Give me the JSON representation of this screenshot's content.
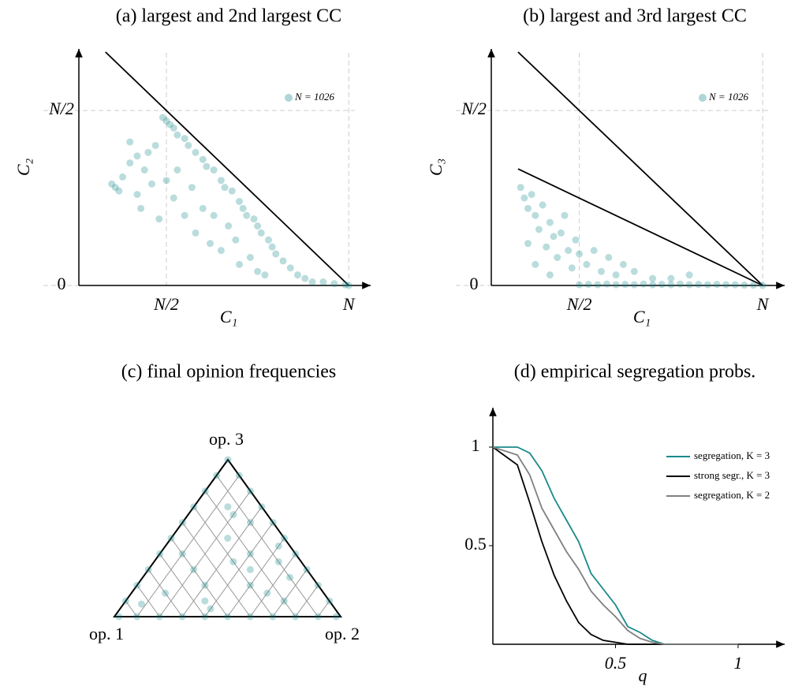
{
  "chart_data": [
    {
      "type": "scatter",
      "title": "(a) largest and 2nd largest CC",
      "x_label": "C₁",
      "y_label": "C₂",
      "xlim": [
        0.26,
        1.06
      ],
      "ylim": [
        0,
        0.676
      ],
      "xticks": [
        {
          "value": 0.5,
          "label": "N/2"
        },
        {
          "value": 1,
          "label": "N"
        }
      ],
      "yticks": [
        0,
        {
          "value": 0.5,
          "label": "N/2"
        }
      ],
      "grid": true,
      "legend": "upper right",
      "lines": [
        {
          "color": "#000000",
          "x": [
            0.333,
            1
          ],
          "y": [
            0.667,
            0
          ]
        }
      ],
      "series": [
        {
          "name": "N = 1026",
          "color": "#1a8a8a",
          "x": [
            0.49,
            0.5,
            0.51,
            0.52,
            0.53,
            0.55,
            0.56,
            0.58,
            0.6,
            0.61,
            0.63,
            0.65,
            0.66,
            0.68,
            0.7,
            0.71,
            0.72,
            0.74,
            0.75,
            0.76,
            0.78,
            0.79,
            0.8,
            0.82,
            0.84,
            0.86,
            0.88,
            0.9,
            0.93,
            0.96,
            0.99,
            1.0,
            0.35,
            0.36,
            0.38,
            0.4,
            0.37,
            0.42,
            0.44,
            0.45,
            0.47,
            0.43,
            0.5,
            0.52,
            0.55,
            0.58,
            0.6,
            0.62,
            0.65,
            0.67,
            0.7,
            0.73,
            0.75,
            0.48,
            0.53,
            0.57,
            0.46,
            0.63,
            0.69,
            0.77,
            0.4,
            0.42
          ],
          "y": [
            0.48,
            0.47,
            0.46,
            0.45,
            0.43,
            0.42,
            0.4,
            0.38,
            0.36,
            0.34,
            0.33,
            0.3,
            0.28,
            0.27,
            0.24,
            0.22,
            0.2,
            0.19,
            0.17,
            0.15,
            0.13,
            0.11,
            0.09,
            0.07,
            0.05,
            0.03,
            0.02,
            0.01,
            0.01,
            0.005,
            0.002,
            0,
            0.29,
            0.28,
            0.31,
            0.35,
            0.27,
            0.26,
            0.33,
            0.38,
            0.4,
            0.22,
            0.3,
            0.25,
            0.2,
            0.15,
            0.22,
            0.12,
            0.1,
            0.17,
            0.06,
            0.08,
            0.04,
            0.19,
            0.33,
            0.28,
            0.29,
            0.2,
            0.13,
            0.03,
            0.41,
            0.37
          ]
        }
      ]
    },
    {
      "type": "scatter",
      "title": "(b) largest and 3rd largest CC",
      "x_label": "C₁",
      "y_label": "C₃",
      "xlim": [
        0.26,
        1.06
      ],
      "ylim": [
        0,
        0.676
      ],
      "xticks": [
        {
          "value": 0.5,
          "label": "N/2"
        },
        {
          "value": 1,
          "label": "N"
        }
      ],
      "yticks": [
        0,
        {
          "value": 0.5,
          "label": "N/2"
        }
      ],
      "grid": true,
      "legend": "upper right",
      "lines": [
        {
          "color": "#000000",
          "x": [
            0.333,
            1
          ],
          "y": [
            0.667,
            0
          ]
        },
        {
          "color": "#000000",
          "x": [
            0.333,
            1
          ],
          "y": [
            0.333,
            0
          ]
        }
      ],
      "series": [
        {
          "name": "N = 1026",
          "color": "#1a8a8a",
          "x": [
            0.34,
            0.35,
            0.36,
            0.37,
            0.38,
            0.39,
            0.4,
            0.41,
            0.42,
            0.43,
            0.44,
            0.45,
            0.46,
            0.47,
            0.48,
            0.49,
            0.5,
            0.52,
            0.54,
            0.56,
            0.58,
            0.6,
            0.62,
            0.65,
            0.7,
            0.75,
            0.8,
            0.36,
            0.38,
            0.42,
            0.5,
            0.525,
            0.55,
            0.575,
            0.6,
            0.625,
            0.65,
            0.675,
            0.7,
            0.725,
            0.75,
            0.775,
            0.8,
            0.825,
            0.85,
            0.875,
            0.9,
            0.925,
            0.95,
            0.975,
            1.0
          ],
          "y": [
            0.28,
            0.25,
            0.22,
            0.26,
            0.2,
            0.16,
            0.23,
            0.11,
            0.18,
            0.14,
            0.08,
            0.15,
            0.2,
            0.1,
            0.05,
            0.13,
            0.09,
            0.06,
            0.1,
            0.04,
            0.08,
            0.03,
            0.06,
            0.04,
            0.02,
            0.02,
            0.03,
            0.12,
            0.06,
            0.03,
            0.002,
            0.003,
            0.002,
            0.004,
            0.002,
            0.003,
            0.002,
            0.004,
            0.002,
            0.003,
            0.002,
            0.004,
            0.002,
            0.003,
            0.002,
            0.003,
            0.002,
            0.002,
            0.001,
            0.001,
            0
          ]
        }
      ]
    },
    {
      "type": "ternary",
      "title": "(c) final opinion frequencies",
      "corners": [
        "op. 1",
        "op. 2",
        "op. 3"
      ],
      "ticks": [
        0.1,
        0.2,
        0.3,
        0.4,
        0.5,
        0.6,
        0.7,
        0.8,
        0.9
      ],
      "series": [
        {
          "color": "#1a8a8a",
          "x": [
            0.02,
            0.1,
            0.2,
            0.3,
            0.4,
            0.5,
            0.6,
            0.7,
            0.8,
            0.9,
            0.98,
            0,
            0,
            0,
            0,
            0,
            0,
            0,
            0,
            0,
            0,
            0.9,
            0.8,
            0.7,
            0.6,
            0.5,
            0.4,
            0.3,
            0.2,
            0.1,
            0.2,
            0.3,
            0.4,
            0.25,
            0.5,
            0.6,
            0.15,
            0.35,
            0.45,
            0.3,
            0.2,
            0.55,
            0.7,
            0.1,
            0.4,
            0.65,
            0.15,
            0.35,
            0.5,
            0.08
          ],
          "y": [
            0,
            0,
            0,
            0,
            0,
            0,
            0,
            0,
            0,
            0,
            0,
            0.1,
            0.2,
            0.3,
            0.4,
            0.5,
            0.6,
            0.7,
            0.8,
            0.9,
            1.0,
            0.1,
            0.2,
            0.3,
            0.4,
            0.5,
            0.6,
            0.7,
            0.8,
            0.9,
            0.3,
            0.2,
            0.4,
            0.5,
            0.2,
            0.15,
            0.15,
            0.1,
            0.3,
            0.6,
            0.65,
            0.35,
            0.1,
            0.4,
            0.05,
            0.25,
            0.7,
            0.35,
            0.45,
            0.08
          ]
        }
      ]
    },
    {
      "type": "line",
      "title": "(d) empirical segregation probs.",
      "x_label": "q",
      "xlim": [
        0,
        1.19
      ],
      "ylim": [
        0,
        1.2
      ],
      "xticks": [
        0.5,
        1
      ],
      "yticks": [
        0.5,
        1
      ],
      "legend": "upper right",
      "x": [
        0,
        0.1,
        0.15,
        0.2,
        0.25,
        0.3,
        0.35,
        0.4,
        0.45,
        0.5,
        0.55,
        0.6,
        0.65,
        0.7,
        0.8,
        0.9,
        1.0
      ],
      "series": [
        {
          "name": "segregation, K = 3",
          "color": "#1a8a8a",
          "values": [
            1,
            1,
            0.97,
            0.88,
            0.74,
            0.63,
            0.52,
            0.36,
            0.28,
            0.2,
            0.09,
            0.06,
            0.02,
            0,
            0,
            0,
            0
          ]
        },
        {
          "name": "strong segr., K = 3",
          "color": "#000000",
          "values": [
            1,
            0.91,
            0.72,
            0.52,
            0.35,
            0.22,
            0.11,
            0.05,
            0.02,
            0.01,
            0,
            0,
            0,
            0,
            0,
            0,
            0
          ]
        },
        {
          "name": "segregation, K = 2",
          "color": "#808080",
          "values": [
            1,
            0.96,
            0.86,
            0.69,
            0.58,
            0.47,
            0.38,
            0.27,
            0.2,
            0.14,
            0.07,
            0.03,
            0.01,
            0,
            0,
            0,
            0
          ]
        }
      ]
    }
  ]
}
